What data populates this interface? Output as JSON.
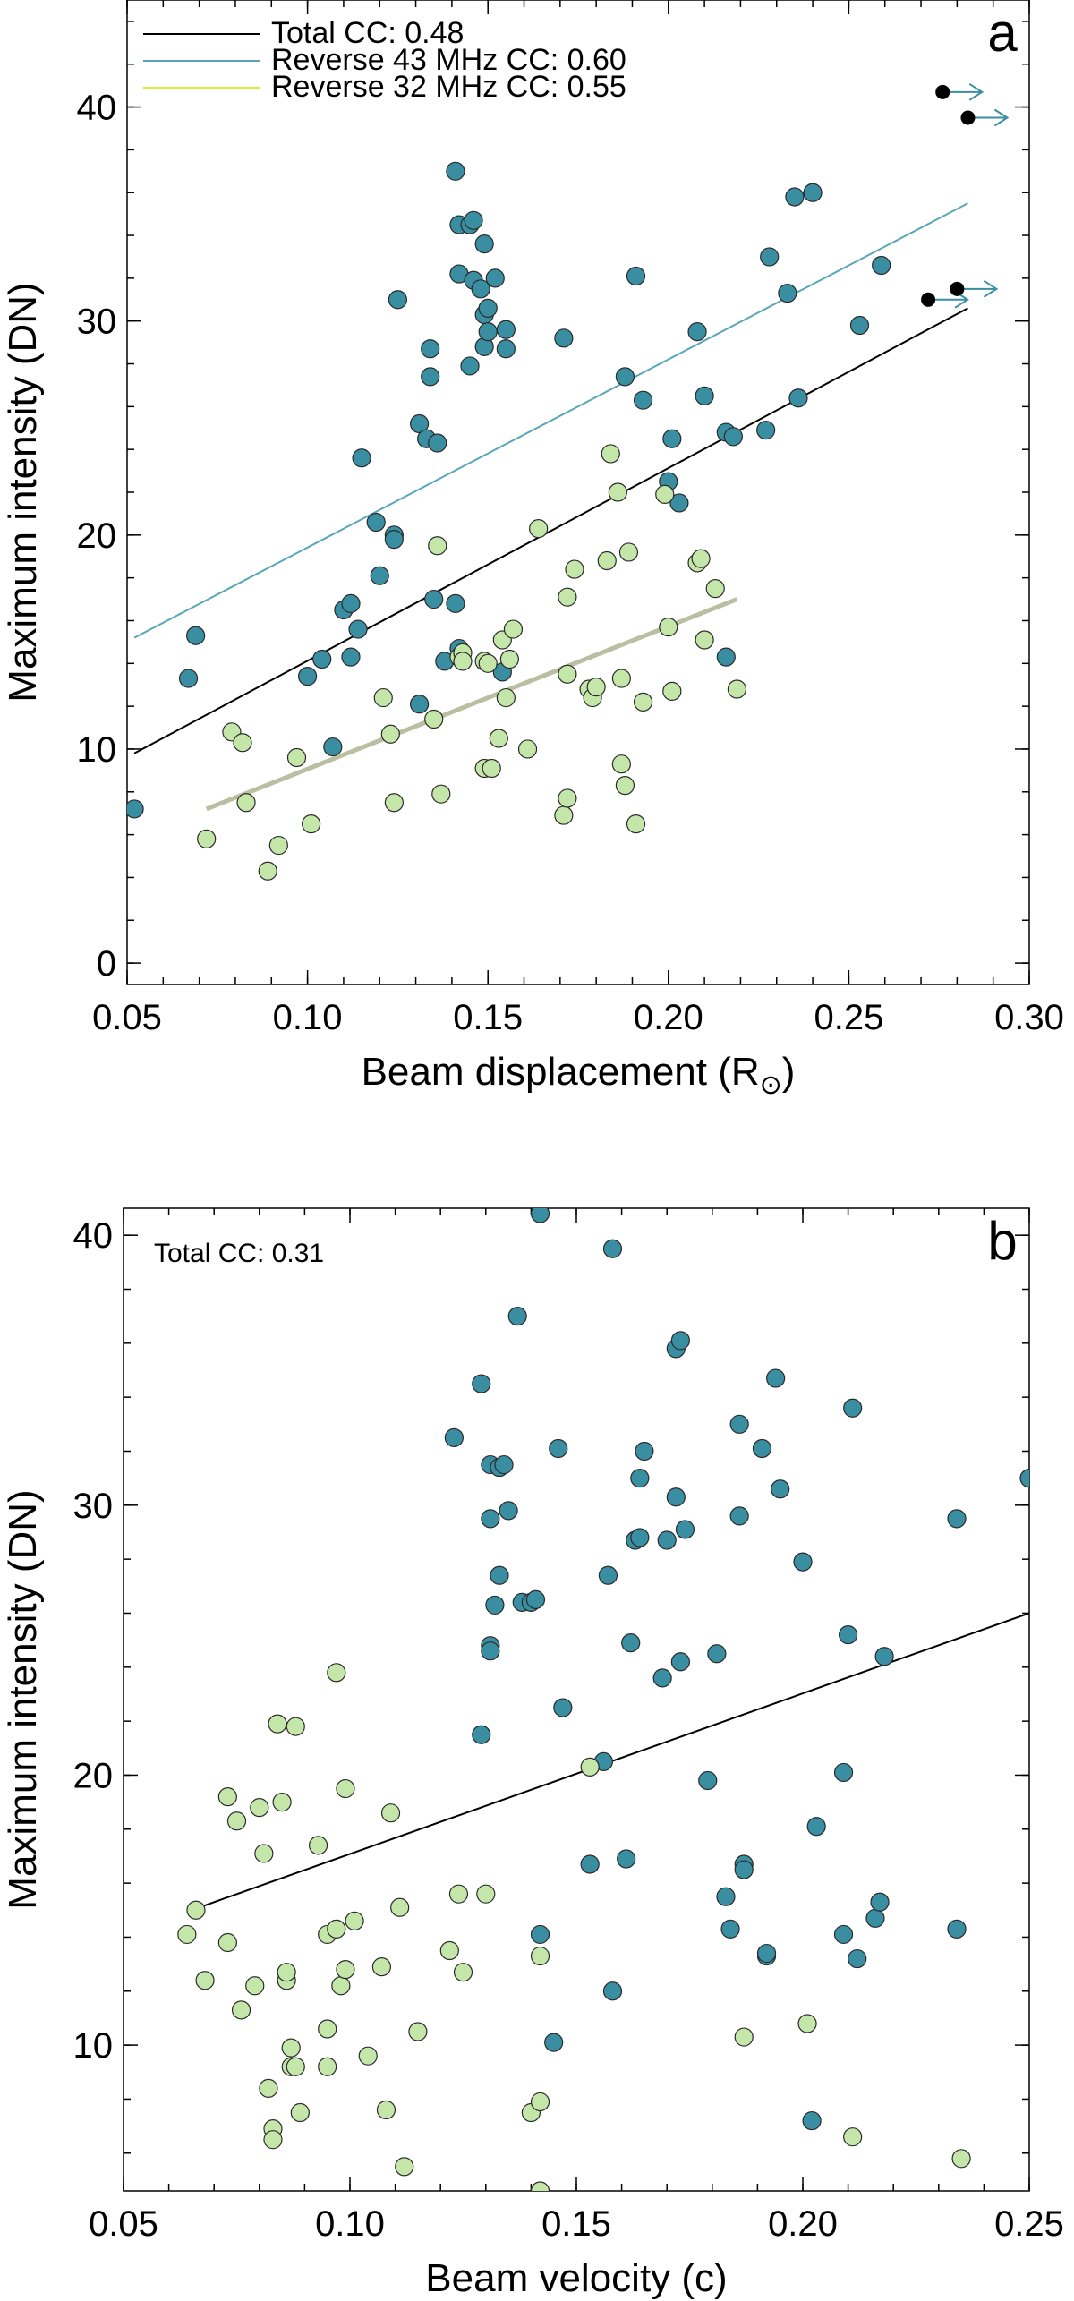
{
  "colors": {
    "forward": "#3a8ea2",
    "reverse32": "#c4e7a9",
    "total_line": "#000000",
    "rev43_line": "#5aa6b8",
    "rev32_line": "#b9bfa0",
    "rev32_legend": "#dcec3a",
    "marker_edge": "#2a2a2a",
    "lower_limit": "#000000",
    "arrow": "#3a8ea2"
  },
  "chart_data": [
    {
      "type": "scatter",
      "panel_label": "a",
      "xlabel": "Beam displacement (R",
      "xlabel_symbol": "⊙",
      "xlabel_close": ")",
      "ylabel": "Maximum intensity (DN)",
      "xlim": [
        0.05,
        0.3
      ],
      "ylim": [
        -1,
        45
      ],
      "xticks": [
        0.05,
        0.1,
        0.15,
        0.2,
        0.25,
        0.3
      ],
      "xtick_labels": [
        "0.05",
        "0.10",
        "0.15",
        "0.20",
        "0.25",
        "0.30"
      ],
      "yticks": [
        0,
        10,
        20,
        30,
        40
      ],
      "ytick_labels": [
        "0",
        "10",
        "20",
        "30",
        "40"
      ],
      "legend_position": "top-left",
      "legend": [
        {
          "label": "Total CC:  0.48",
          "color": "#000000"
        },
        {
          "label": "Reverse 43 MHz CC:  0.60",
          "color": "#5aa6b8"
        },
        {
          "label": "Reverse 32 MHz CC:  0.55",
          "color": "#dcec3a"
        }
      ],
      "fit_lines": [
        {
          "color": "#000000",
          "width": 2,
          "x": [
            0.052,
            0.283
          ],
          "y": [
            9.8,
            30.6
          ]
        },
        {
          "color": "#5aa6b8",
          "width": 2,
          "x": [
            0.052,
            0.283
          ],
          "y": [
            15.2,
            35.5
          ]
        },
        {
          "color": "#b9bfa0",
          "width": 5,
          "x": [
            0.072,
            0.219
          ],
          "y": [
            7.2,
            17.0
          ]
        }
      ],
      "series": [
        {
          "color": "#3a8ea2",
          "points": [
            [
              0.052,
              7.2
            ],
            [
              0.067,
              13.3
            ],
            [
              0.069,
              15.3
            ],
            [
              0.1,
              13.4
            ],
            [
              0.104,
              14.2
            ],
            [
              0.107,
              10.1
            ],
            [
              0.11,
              16.5
            ],
            [
              0.112,
              16.8
            ],
            [
              0.112,
              14.3
            ],
            [
              0.114,
              15.6
            ],
            [
              0.115,
              23.6
            ],
            [
              0.119,
              20.6
            ],
            [
              0.12,
              18.1
            ],
            [
              0.124,
              20.0
            ],
            [
              0.124,
              19.8
            ],
            [
              0.125,
              31.0
            ],
            [
              0.131,
              25.2
            ],
            [
              0.131,
              12.1
            ],
            [
              0.133,
              24.5
            ],
            [
              0.134,
              28.7
            ],
            [
              0.134,
              27.4
            ],
            [
              0.135,
              17.0
            ],
            [
              0.136,
              24.3
            ],
            [
              0.138,
              14.1
            ],
            [
              0.141,
              16.8
            ],
            [
              0.141,
              37.0
            ],
            [
              0.142,
              32.2
            ],
            [
              0.142,
              34.5
            ],
            [
              0.142,
              14.7
            ],
            [
              0.145,
              34.5
            ],
            [
              0.145,
              27.9
            ],
            [
              0.146,
              34.7
            ],
            [
              0.146,
              31.9
            ],
            [
              0.148,
              31.5
            ],
            [
              0.149,
              30.3
            ],
            [
              0.149,
              28.8
            ],
            [
              0.149,
              33.6
            ],
            [
              0.15,
              30.6
            ],
            [
              0.15,
              29.5
            ],
            [
              0.152,
              32.0
            ],
            [
              0.154,
              13.6
            ],
            [
              0.155,
              29.6
            ],
            [
              0.155,
              28.7
            ],
            [
              0.171,
              29.2
            ],
            [
              0.188,
              27.4
            ],
            [
              0.191,
              32.1
            ],
            [
              0.193,
              26.3
            ],
            [
              0.2,
              22.5
            ],
            [
              0.201,
              24.5
            ],
            [
              0.203,
              21.5
            ],
            [
              0.208,
              29.5
            ],
            [
              0.21,
              26.5
            ],
            [
              0.216,
              24.8
            ],
            [
              0.216,
              14.3
            ],
            [
              0.218,
              24.6
            ],
            [
              0.227,
              24.9
            ],
            [
              0.228,
              33.0
            ],
            [
              0.233,
              31.3
            ],
            [
              0.235,
              35.8
            ],
            [
              0.236,
              26.4
            ],
            [
              0.24,
              36.0
            ],
            [
              0.253,
              29.8
            ],
            [
              0.259,
              32.6
            ]
          ]
        },
        {
          "color": "#c4e7a9",
          "points": [
            [
              0.072,
              5.8
            ],
            [
              0.079,
              10.8
            ],
            [
              0.082,
              10.3
            ],
            [
              0.083,
              7.5
            ],
            [
              0.089,
              4.3
            ],
            [
              0.092,
              5.5
            ],
            [
              0.097,
              9.6
            ],
            [
              0.101,
              6.5
            ],
            [
              0.121,
              12.4
            ],
            [
              0.123,
              10.7
            ],
            [
              0.124,
              7.5
            ],
            [
              0.135,
              11.4
            ],
            [
              0.136,
              19.5
            ],
            [
              0.137,
              7.9
            ],
            [
              0.142,
              14.3
            ],
            [
              0.143,
              14.5
            ],
            [
              0.143,
              14.1
            ],
            [
              0.149,
              9.1
            ],
            [
              0.149,
              14.1
            ],
            [
              0.15,
              14.0
            ],
            [
              0.151,
              9.1
            ],
            [
              0.153,
              10.5
            ],
            [
              0.154,
              15.1
            ],
            [
              0.155,
              12.4
            ],
            [
              0.156,
              14.2
            ],
            [
              0.157,
              15.6
            ],
            [
              0.161,
              10.0
            ],
            [
              0.164,
              20.3
            ],
            [
              0.171,
              6.9
            ],
            [
              0.172,
              17.1
            ],
            [
              0.172,
              13.5
            ],
            [
              0.172,
              7.7
            ],
            [
              0.174,
              18.4
            ],
            [
              0.178,
              12.8
            ],
            [
              0.179,
              12.4
            ],
            [
              0.18,
              12.9
            ],
            [
              0.183,
              18.8
            ],
            [
              0.184,
              23.8
            ],
            [
              0.186,
              22.0
            ],
            [
              0.187,
              13.3
            ],
            [
              0.187,
              9.3
            ],
            [
              0.188,
              8.3
            ],
            [
              0.189,
              19.2
            ],
            [
              0.191,
              6.5
            ],
            [
              0.193,
              12.2
            ],
            [
              0.199,
              21.9
            ],
            [
              0.2,
              15.7
            ],
            [
              0.201,
              12.7
            ],
            [
              0.208,
              18.7
            ],
            [
              0.209,
              18.9
            ],
            [
              0.21,
              15.1
            ],
            [
              0.213,
              17.5
            ],
            [
              0.219,
              12.8
            ]
          ]
        }
      ],
      "lower_limits": [
        {
          "x": 0.276,
          "y": 40.7
        },
        {
          "x": 0.283,
          "y": 39.5
        },
        {
          "x": 0.272,
          "y": 31.0
        },
        {
          "x": 0.28,
          "y": 31.5
        }
      ]
    },
    {
      "type": "scatter",
      "panel_label": "b",
      "annotation": "Total CC:  0.31",
      "xlabel": "Beam velocity (c)",
      "ylabel": "Maximum intensity (DN)",
      "xlim": [
        0.05,
        0.25
      ],
      "ylim": [
        4.6,
        41.0
      ],
      "xticks": [
        0.05,
        0.1,
        0.15,
        0.2,
        0.25
      ],
      "xtick_labels": [
        "0.05",
        "0.10",
        "0.15",
        "0.20",
        "0.25"
      ],
      "yticks": [
        10,
        20,
        30,
        40
      ],
      "ytick_labels": [
        "10",
        "20",
        "30",
        "40"
      ],
      "fit_lines": [
        {
          "color": "#000000",
          "width": 2,
          "x": [
            0.065,
            0.25
          ],
          "y": [
            15.0,
            26.0
          ]
        }
      ],
      "series": [
        {
          "color": "#3a8ea2",
          "points": [
            [
              0.123,
              32.5
            ],
            [
              0.129,
              34.5
            ],
            [
              0.129,
              21.5
            ],
            [
              0.131,
              31.5
            ],
            [
              0.131,
              29.5
            ],
            [
              0.131,
              24.8
            ],
            [
              0.131,
              24.6
            ],
            [
              0.132,
              26.3
            ],
            [
              0.133,
              31.4
            ],
            [
              0.133,
              27.4
            ],
            [
              0.134,
              31.5
            ],
            [
              0.135,
              29.8
            ],
            [
              0.137,
              37.0
            ],
            [
              0.138,
              26.4
            ],
            [
              0.14,
              26.4
            ],
            [
              0.141,
              26.5
            ],
            [
              0.142,
              40.8
            ],
            [
              0.142,
              14.1
            ],
            [
              0.145,
              10.1
            ],
            [
              0.146,
              32.1
            ],
            [
              0.147,
              22.5
            ],
            [
              0.153,
              16.7
            ],
            [
              0.156,
              20.5
            ],
            [
              0.157,
              27.4
            ],
            [
              0.158,
              39.5
            ],
            [
              0.158,
              12.0
            ],
            [
              0.161,
              16.9
            ],
            [
              0.162,
              24.9
            ],
            [
              0.163,
              28.7
            ],
            [
              0.164,
              28.8
            ],
            [
              0.164,
              31.0
            ],
            [
              0.165,
              32.0
            ],
            [
              0.169,
              23.6
            ],
            [
              0.17,
              28.7
            ],
            [
              0.172,
              35.8
            ],
            [
              0.172,
              30.3
            ],
            [
              0.173,
              24.2
            ],
            [
              0.173,
              36.1
            ],
            [
              0.174,
              29.1
            ],
            [
              0.179,
              19.8
            ],
            [
              0.181,
              24.5
            ],
            [
              0.183,
              15.5
            ],
            [
              0.184,
              14.3
            ],
            [
              0.186,
              33.0
            ],
            [
              0.186,
              29.6
            ],
            [
              0.187,
              16.7
            ],
            [
              0.187,
              16.5
            ],
            [
              0.191,
              32.1
            ],
            [
              0.192,
              13.3
            ],
            [
              0.192,
              13.4
            ],
            [
              0.194,
              34.7
            ],
            [
              0.195,
              30.6
            ],
            [
              0.2,
              27.9
            ],
            [
              0.202,
              7.2
            ],
            [
              0.203,
              18.1
            ],
            [
              0.209,
              14.1
            ],
            [
              0.209,
              20.1
            ],
            [
              0.21,
              25.2
            ],
            [
              0.211,
              33.6
            ],
            [
              0.212,
              13.2
            ],
            [
              0.216,
              14.7
            ],
            [
              0.217,
              15.3
            ],
            [
              0.218,
              24.4
            ],
            [
              0.234,
              29.5
            ],
            [
              0.234,
              14.3
            ],
            [
              0.25,
              31.0
            ]
          ]
        },
        {
          "color": "#c4e7a9",
          "points": [
            [
              0.064,
              14.1
            ],
            [
              0.066,
              15.0
            ],
            [
              0.068,
              12.4
            ],
            [
              0.073,
              19.2
            ],
            [
              0.073,
              13.8
            ],
            [
              0.075,
              18.3
            ],
            [
              0.076,
              11.3
            ],
            [
              0.079,
              12.2
            ],
            [
              0.08,
              18.8
            ],
            [
              0.081,
              17.1
            ],
            [
              0.082,
              8.4
            ],
            [
              0.083,
              6.9
            ],
            [
              0.083,
              6.5
            ],
            [
              0.084,
              21.9
            ],
            [
              0.085,
              19.0
            ],
            [
              0.086,
              12.4
            ],
            [
              0.086,
              12.7
            ],
            [
              0.087,
              9.9
            ],
            [
              0.087,
              9.2
            ],
            [
              0.088,
              21.8
            ],
            [
              0.088,
              9.2
            ],
            [
              0.089,
              7.5
            ],
            [
              0.093,
              17.4
            ],
            [
              0.095,
              14.1
            ],
            [
              0.095,
              10.6
            ],
            [
              0.095,
              9.2
            ],
            [
              0.097,
              14.3
            ],
            [
              0.097,
              23.8
            ],
            [
              0.098,
              12.2
            ],
            [
              0.099,
              12.8
            ],
            [
              0.099,
              19.5
            ],
            [
              0.101,
              14.6
            ],
            [
              0.104,
              9.6
            ],
            [
              0.107,
              12.9
            ],
            [
              0.108,
              7.6
            ],
            [
              0.109,
              18.6
            ],
            [
              0.111,
              15.1
            ],
            [
              0.112,
              5.5
            ],
            [
              0.115,
              10.5
            ],
            [
              0.122,
              13.5
            ],
            [
              0.124,
              15.6
            ],
            [
              0.125,
              12.7
            ],
            [
              0.13,
              15.6
            ],
            [
              0.14,
              7.5
            ],
            [
              0.142,
              7.9
            ],
            [
              0.142,
              4.6
            ],
            [
              0.142,
              13.3
            ],
            [
              0.153,
              20.3
            ],
            [
              0.187,
              10.3
            ],
            [
              0.201,
              10.8
            ],
            [
              0.211,
              6.6
            ],
            [
              0.235,
              5.8
            ]
          ]
        }
      ]
    }
  ]
}
